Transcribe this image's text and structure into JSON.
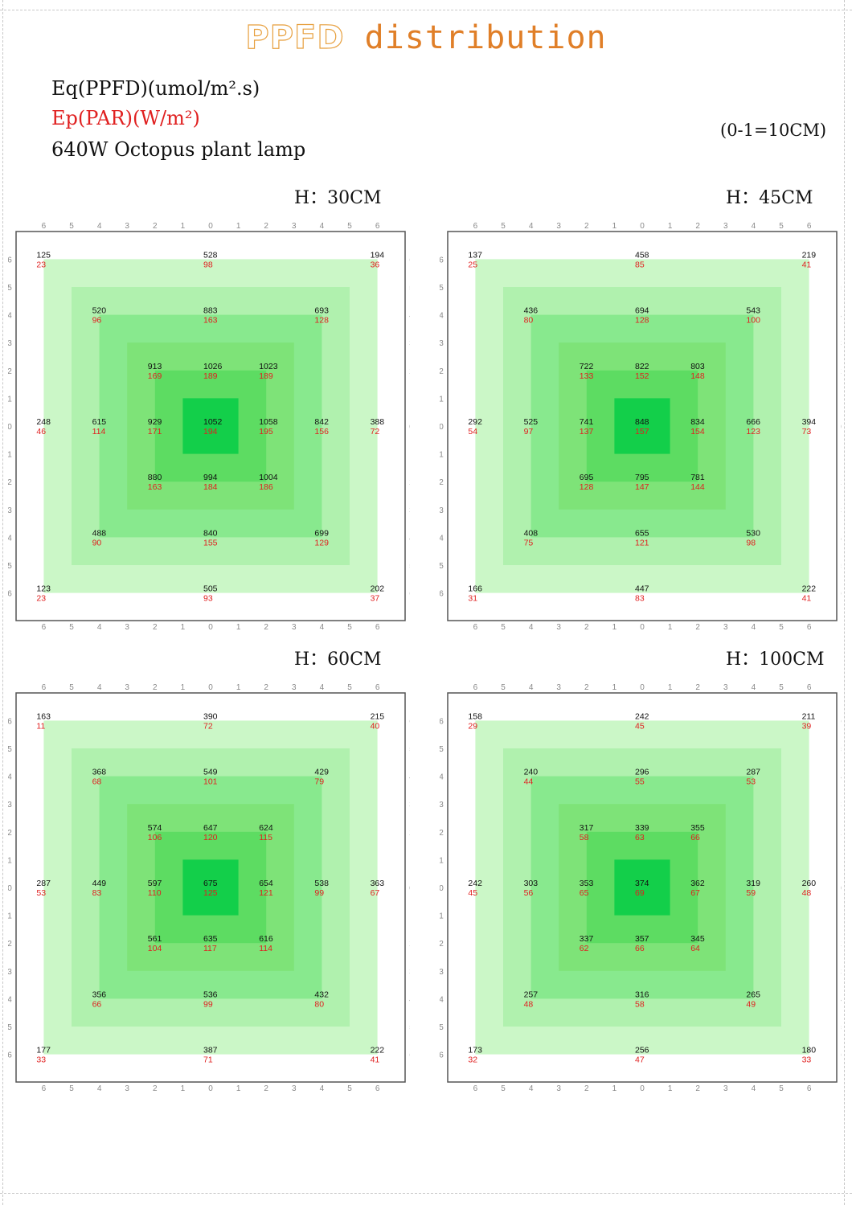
{
  "title": {
    "prefix": "PPFD",
    "rest": " distribution"
  },
  "legend": {
    "line1": "Eq(PPFD)(umol/m².s)",
    "line2": "Ep(PAR)(W/m²)",
    "line3": "640W Octopus plant lamp"
  },
  "scale_note": "(0-1=10CM)",
  "colors": {
    "ppfd": "#111111",
    "par": "#e02020",
    "ring_light": "#cbf7c7",
    "ring_center": "#13cf4a"
  },
  "chart_data": [
    {
      "type": "heatmap",
      "title": "H：30CM",
      "axis_ticks": [
        "6",
        "5",
        "4",
        "3",
        "2",
        "1",
        "0",
        "1",
        "2",
        "3",
        "4",
        "5",
        "6"
      ],
      "positions": [
        -6,
        -4,
        -2,
        0,
        2,
        4,
        6
      ],
      "points": [
        {
          "x": -6,
          "y": 6,
          "ppfd": 125,
          "par": 23
        },
        {
          "x": 0,
          "y": 6,
          "ppfd": 528,
          "par": 98
        },
        {
          "x": 6,
          "y": 6,
          "ppfd": 194,
          "par": 36
        },
        {
          "x": -4,
          "y": 4,
          "ppfd": 520,
          "par": 96
        },
        {
          "x": 0,
          "y": 4,
          "ppfd": 883,
          "par": 163
        },
        {
          "x": 4,
          "y": 4,
          "ppfd": 693,
          "par": 128
        },
        {
          "x": -2,
          "y": 2,
          "ppfd": 913,
          "par": 169
        },
        {
          "x": 0,
          "y": 2,
          "ppfd": 1026,
          "par": 189
        },
        {
          "x": 2,
          "y": 2,
          "ppfd": 1023,
          "par": 189
        },
        {
          "x": -6,
          "y": 0,
          "ppfd": 248,
          "par": 46
        },
        {
          "x": -4,
          "y": 0,
          "ppfd": 615,
          "par": 114
        },
        {
          "x": -2,
          "y": 0,
          "ppfd": 929,
          "par": 171
        },
        {
          "x": 0,
          "y": 0,
          "ppfd": 1052,
          "par": 194
        },
        {
          "x": 2,
          "y": 0,
          "ppfd": 1058,
          "par": 195
        },
        {
          "x": 4,
          "y": 0,
          "ppfd": 842,
          "par": 156
        },
        {
          "x": 6,
          "y": 0,
          "ppfd": 388,
          "par": 72
        },
        {
          "x": -2,
          "y": -2,
          "ppfd": 880,
          "par": 163
        },
        {
          "x": 0,
          "y": -2,
          "ppfd": 994,
          "par": 184
        },
        {
          "x": 2,
          "y": -2,
          "ppfd": 1004,
          "par": 186
        },
        {
          "x": -4,
          "y": -4,
          "ppfd": 488,
          "par": 90
        },
        {
          "x": 0,
          "y": -4,
          "ppfd": 840,
          "par": 155
        },
        {
          "x": 4,
          "y": -4,
          "ppfd": 699,
          "par": 129
        },
        {
          "x": -6,
          "y": -6,
          "ppfd": 123,
          "par": 23
        },
        {
          "x": 0,
          "y": -6,
          "ppfd": 505,
          "par": 93
        },
        {
          "x": 6,
          "y": -6,
          "ppfd": 202,
          "par": 37
        }
      ]
    },
    {
      "type": "heatmap",
      "title": "H：45CM",
      "axis_ticks": [
        "6",
        "5",
        "4",
        "3",
        "2",
        "1",
        "0",
        "1",
        "2",
        "3",
        "4",
        "5",
        "6"
      ],
      "positions": [
        -6,
        -4,
        -2,
        0,
        2,
        4,
        6
      ],
      "points": [
        {
          "x": -6,
          "y": 6,
          "ppfd": 137,
          "par": 25
        },
        {
          "x": 0,
          "y": 6,
          "ppfd": 458,
          "par": 85
        },
        {
          "x": 6,
          "y": 6,
          "ppfd": 219,
          "par": 41
        },
        {
          "x": -4,
          "y": 4,
          "ppfd": 436,
          "par": 80
        },
        {
          "x": 0,
          "y": 4,
          "ppfd": 694,
          "par": 128
        },
        {
          "x": 4,
          "y": 4,
          "ppfd": 543,
          "par": 100
        },
        {
          "x": -2,
          "y": 2,
          "ppfd": 722,
          "par": 133
        },
        {
          "x": 0,
          "y": 2,
          "ppfd": 822,
          "par": 152
        },
        {
          "x": 2,
          "y": 2,
          "ppfd": 803,
          "par": 148
        },
        {
          "x": -6,
          "y": 0,
          "ppfd": 292,
          "par": 54
        },
        {
          "x": -4,
          "y": 0,
          "ppfd": 525,
          "par": 97
        },
        {
          "x": -2,
          "y": 0,
          "ppfd": 741,
          "par": 137
        },
        {
          "x": 0,
          "y": 0,
          "ppfd": 848,
          "par": 157
        },
        {
          "x": 2,
          "y": 0,
          "ppfd": 834,
          "par": 154
        },
        {
          "x": 4,
          "y": 0,
          "ppfd": 666,
          "par": 123
        },
        {
          "x": 6,
          "y": 0,
          "ppfd": 394,
          "par": 73
        },
        {
          "x": -2,
          "y": -2,
          "ppfd": 695,
          "par": 128
        },
        {
          "x": 0,
          "y": -2,
          "ppfd": 795,
          "par": 147
        },
        {
          "x": 2,
          "y": -2,
          "ppfd": 781,
          "par": 144
        },
        {
          "x": -4,
          "y": -4,
          "ppfd": 408,
          "par": 75
        },
        {
          "x": 0,
          "y": -4,
          "ppfd": 655,
          "par": 121
        },
        {
          "x": 4,
          "y": -4,
          "ppfd": 530,
          "par": 98
        },
        {
          "x": -6,
          "y": -6,
          "ppfd": 166,
          "par": 31
        },
        {
          "x": 0,
          "y": -6,
          "ppfd": 447,
          "par": 83
        },
        {
          "x": 6,
          "y": -6,
          "ppfd": 222,
          "par": 41
        }
      ]
    },
    {
      "type": "heatmap",
      "title": "H：60CM",
      "axis_ticks": [
        "6",
        "5",
        "4",
        "3",
        "2",
        "1",
        "0",
        "1",
        "2",
        "3",
        "4",
        "5",
        "6"
      ],
      "positions": [
        -6,
        -4,
        -2,
        0,
        2,
        4,
        6
      ],
      "points": [
        {
          "x": -6,
          "y": 6,
          "ppfd": 163,
          "par": 11
        },
        {
          "x": 0,
          "y": 6,
          "ppfd": 390,
          "par": 72
        },
        {
          "x": 6,
          "y": 6,
          "ppfd": 215,
          "par": 40
        },
        {
          "x": -4,
          "y": 4,
          "ppfd": 368,
          "par": 68
        },
        {
          "x": 0,
          "y": 4,
          "ppfd": 549,
          "par": 101
        },
        {
          "x": 4,
          "y": 4,
          "ppfd": 429,
          "par": 79
        },
        {
          "x": -2,
          "y": 2,
          "ppfd": 574,
          "par": 106
        },
        {
          "x": 0,
          "y": 2,
          "ppfd": 647,
          "par": 120
        },
        {
          "x": 2,
          "y": 2,
          "ppfd": 624,
          "par": 115
        },
        {
          "x": -6,
          "y": 0,
          "ppfd": 287,
          "par": 53
        },
        {
          "x": -4,
          "y": 0,
          "ppfd": 449,
          "par": 83
        },
        {
          "x": -2,
          "y": 0,
          "ppfd": 597,
          "par": 110
        },
        {
          "x": 0,
          "y": 0,
          "ppfd": 675,
          "par": 125
        },
        {
          "x": 2,
          "y": 0,
          "ppfd": 654,
          "par": 121
        },
        {
          "x": 4,
          "y": 0,
          "ppfd": 538,
          "par": 99
        },
        {
          "x": 6,
          "y": 0,
          "ppfd": 363,
          "par": 67
        },
        {
          "x": -2,
          "y": -2,
          "ppfd": 561,
          "par": 104
        },
        {
          "x": 0,
          "y": -2,
          "ppfd": 635,
          "par": 117
        },
        {
          "x": 2,
          "y": -2,
          "ppfd": 616,
          "par": 114
        },
        {
          "x": -4,
          "y": -4,
          "ppfd": 356,
          "par": 66
        },
        {
          "x": 0,
          "y": -4,
          "ppfd": 536,
          "par": 99
        },
        {
          "x": 4,
          "y": -4,
          "ppfd": 432,
          "par": 80
        },
        {
          "x": -6,
          "y": -6,
          "ppfd": 177,
          "par": 33
        },
        {
          "x": 0,
          "y": -6,
          "ppfd": 387,
          "par": 71
        },
        {
          "x": 6,
          "y": -6,
          "ppfd": 222,
          "par": 41
        }
      ]
    },
    {
      "type": "heatmap",
      "title": "H：100CM",
      "axis_ticks": [
        "6",
        "5",
        "4",
        "3",
        "2",
        "1",
        "0",
        "1",
        "2",
        "3",
        "4",
        "5",
        "6"
      ],
      "positions": [
        -6,
        -4,
        -2,
        0,
        2,
        4,
        6
      ],
      "points": [
        {
          "x": -6,
          "y": 6,
          "ppfd": 158,
          "par": 29
        },
        {
          "x": 0,
          "y": 6,
          "ppfd": 242,
          "par": 45
        },
        {
          "x": 6,
          "y": 6,
          "ppfd": 211,
          "par": 39
        },
        {
          "x": -4,
          "y": 4,
          "ppfd": 240,
          "par": 44
        },
        {
          "x": 0,
          "y": 4,
          "ppfd": 296,
          "par": 55
        },
        {
          "x": 4,
          "y": 4,
          "ppfd": 287,
          "par": 53
        },
        {
          "x": -2,
          "y": 2,
          "ppfd": 317,
          "par": 58
        },
        {
          "x": 0,
          "y": 2,
          "ppfd": 339,
          "par": 63
        },
        {
          "x": 2,
          "y": 2,
          "ppfd": 355,
          "par": 66
        },
        {
          "x": -6,
          "y": 0,
          "ppfd": 242,
          "par": 45
        },
        {
          "x": -4,
          "y": 0,
          "ppfd": 303,
          "par": 56
        },
        {
          "x": -2,
          "y": 0,
          "ppfd": 353,
          "par": 65
        },
        {
          "x": 0,
          "y": 0,
          "ppfd": 374,
          "par": 69
        },
        {
          "x": 2,
          "y": 0,
          "ppfd": 362,
          "par": 67
        },
        {
          "x": 4,
          "y": 0,
          "ppfd": 319,
          "par": 59
        },
        {
          "x": 6,
          "y": 0,
          "ppfd": 260,
          "par": 48
        },
        {
          "x": -2,
          "y": -2,
          "ppfd": 337,
          "par": 62
        },
        {
          "x": 0,
          "y": -2,
          "ppfd": 357,
          "par": 66
        },
        {
          "x": 2,
          "y": -2,
          "ppfd": 345,
          "par": 64
        },
        {
          "x": -4,
          "y": -4,
          "ppfd": 257,
          "par": 48
        },
        {
          "x": 0,
          "y": -4,
          "ppfd": 316,
          "par": 58
        },
        {
          "x": 4,
          "y": -4,
          "ppfd": 265,
          "par": 49
        },
        {
          "x": -6,
          "y": -6,
          "ppfd": 173,
          "par": 32
        },
        {
          "x": 0,
          "y": -6,
          "ppfd": 256,
          "par": 47
        },
        {
          "x": 6,
          "y": -6,
          "ppfd": 180,
          "par": 33
        }
      ]
    }
  ]
}
